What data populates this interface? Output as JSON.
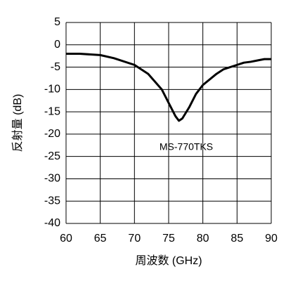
{
  "chart_data": {
    "type": "line",
    "ylabel": "反射量 (dB)",
    "xlabel": "周波数 (GHz)",
    "annotation": "MS-770TKS",
    "xlim": [
      60,
      90
    ],
    "xticks": [
      60,
      65,
      70,
      75,
      80,
      85,
      90
    ],
    "ylim": [
      -40,
      5
    ],
    "yticks": [
      5,
      0,
      -5,
      -10,
      -15,
      -20,
      -25,
      -30,
      -35,
      -40
    ],
    "grid": true,
    "series": [
      {
        "color": "#000000",
        "x": [
          60,
          62,
          65,
          67,
          70,
          72,
          74,
          75,
          76,
          76.5,
          77,
          78,
          79,
          80,
          82,
          83,
          85,
          86,
          87,
          88,
          89,
          90
        ],
        "values": [
          -2,
          -2,
          -2.3,
          -3,
          -4.5,
          -6.5,
          -10,
          -13,
          -16,
          -17,
          -16.5,
          -14,
          -11,
          -9,
          -6.5,
          -5.5,
          -4.5,
          -4,
          -3.8,
          -3.5,
          -3.2,
          -3.2
        ]
      }
    ]
  }
}
